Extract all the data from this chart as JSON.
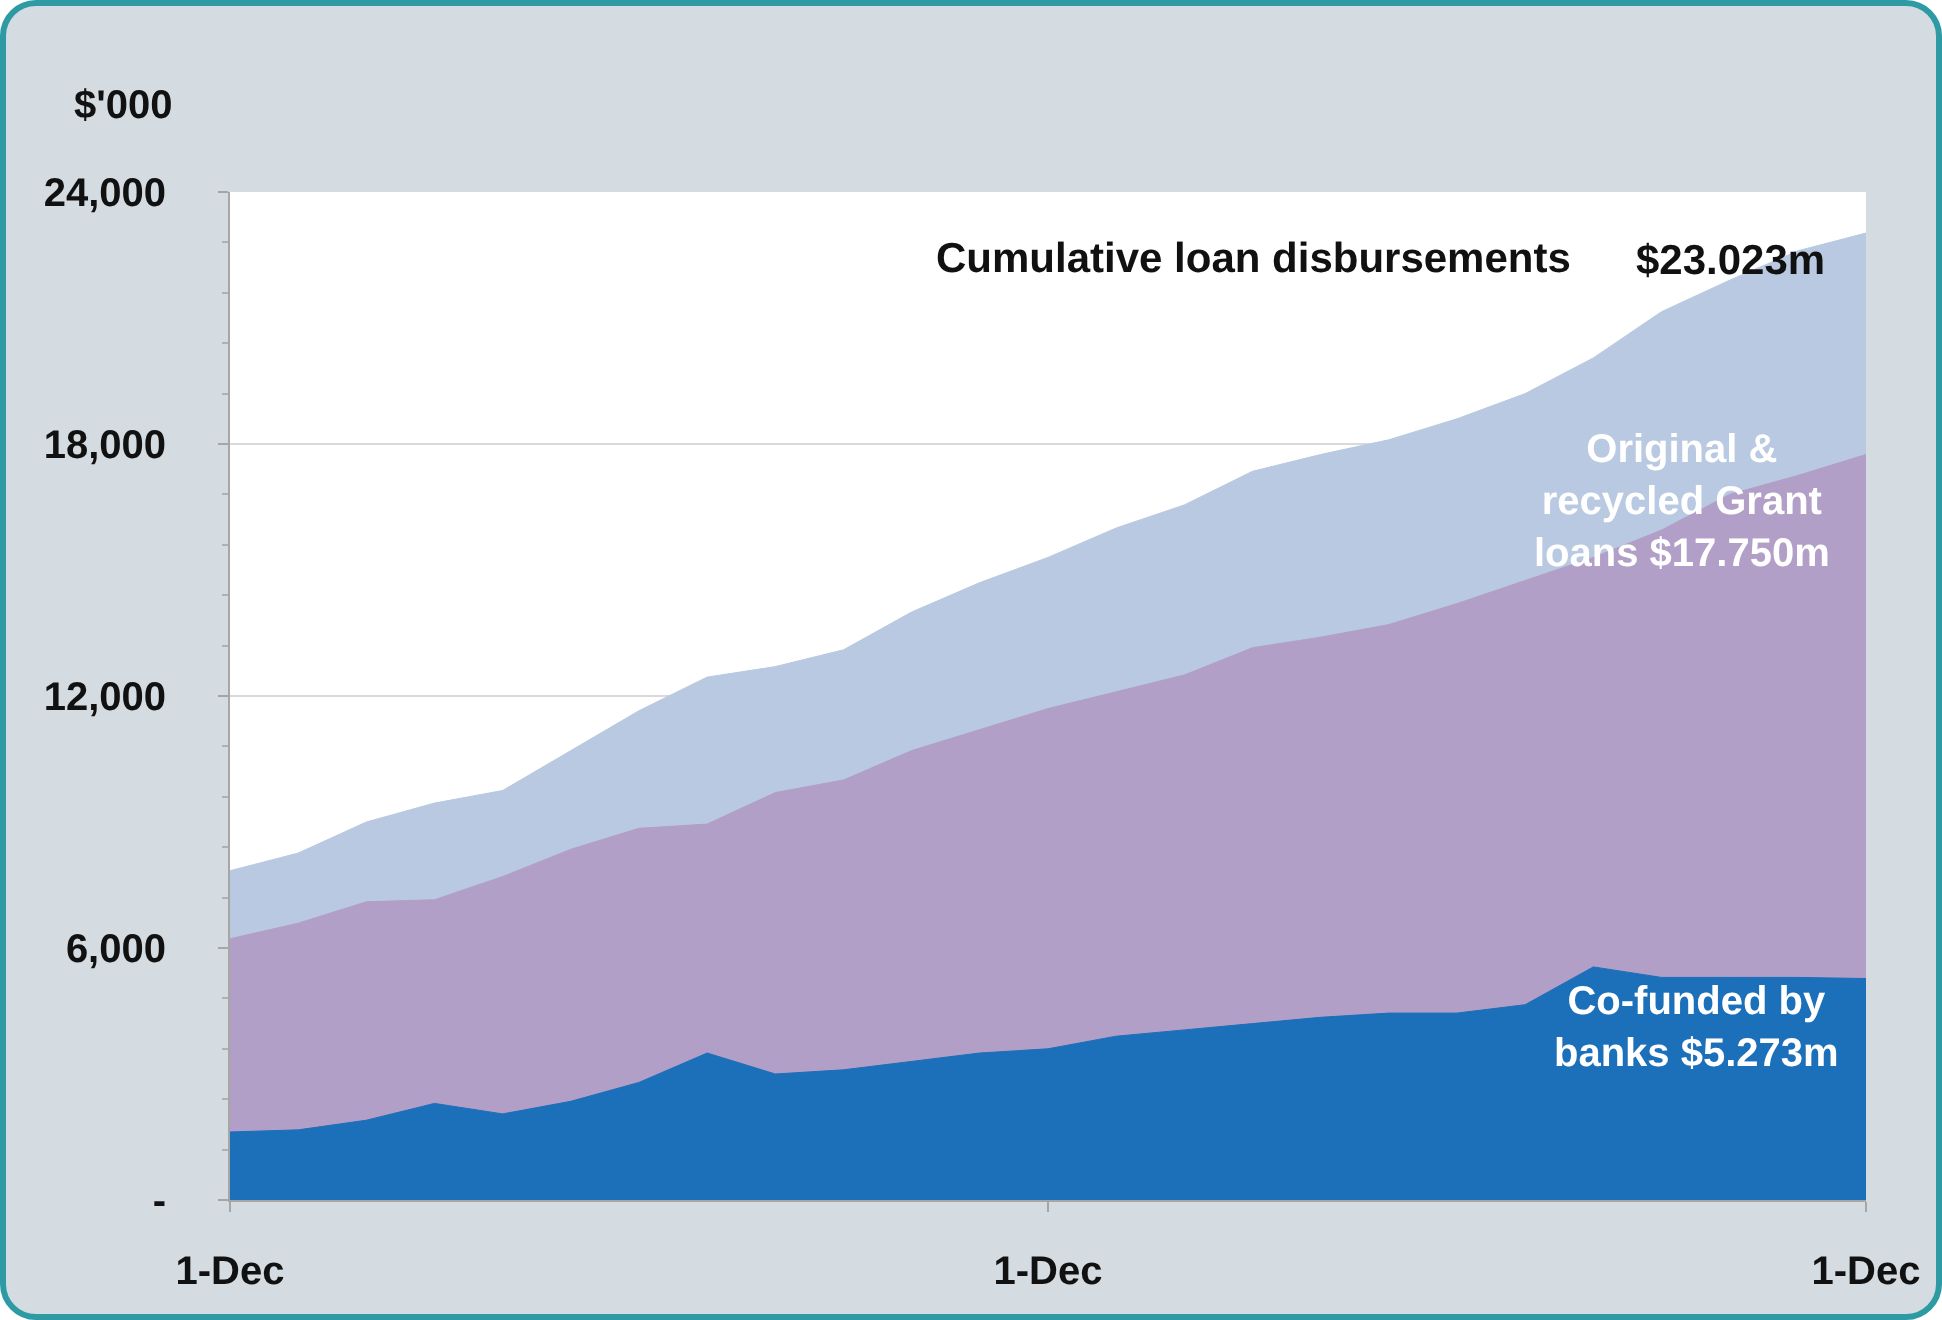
{
  "chart_data": {
    "type": "area",
    "ylabel": "$'000",
    "categories": [
      "1-Dec",
      null,
      null,
      null,
      null,
      null,
      null,
      null,
      null,
      null,
      null,
      null,
      "1-Dec",
      null,
      null,
      null,
      null,
      null,
      null,
      null,
      null,
      null,
      null,
      null,
      "1-Dec"
    ],
    "ylim": [
      0,
      24000
    ],
    "yticks": [
      {
        "value": 0,
        "label": "-"
      },
      {
        "value": 6000,
        "label": "6,000"
      },
      {
        "value": 12000,
        "label": "12,000"
      },
      {
        "value": 18000,
        "label": "18,000"
      },
      {
        "value": 24000,
        "label": "24,000"
      }
    ],
    "grid": "y",
    "legend": false,
    "series": [
      {
        "name": "Cumulative loan disbursements",
        "color": "#b8c9e1",
        "values": [
          7840,
          8260,
          9000,
          9450,
          9750,
          10700,
          11650,
          12450,
          12700,
          13100,
          14000,
          14700,
          15300,
          16000,
          16550,
          17350,
          17750,
          18100,
          18600,
          19200,
          20050,
          21150,
          21900,
          22600,
          23023
        ]
      },
      {
        "name": "Original & recycled Grant loans $17.750m",
        "color": "#b29fc7",
        "values": [
          6220,
          6590,
          7100,
          7150,
          7700,
          8350,
          8850,
          8950,
          9700,
          10000,
          10700,
          11200,
          11700,
          12100,
          12500,
          13150,
          13400,
          13700,
          14200,
          14750,
          15300,
          15950,
          16800,
          17250,
          17750
        ]
      },
      {
        "name": "Co-funded by banks $5.273m",
        "color": "#1c6fb9",
        "values": [
          1620,
          1670,
          1900,
          2300,
          2050,
          2350,
          2800,
          3500,
          3000,
          3100,
          3300,
          3500,
          3600,
          3900,
          4050,
          4200,
          4350,
          4450,
          4450,
          4650,
          5550,
          5300,
          5300,
          5300,
          5273
        ]
      }
    ],
    "annotations": [
      "$23.023m"
    ]
  }
}
